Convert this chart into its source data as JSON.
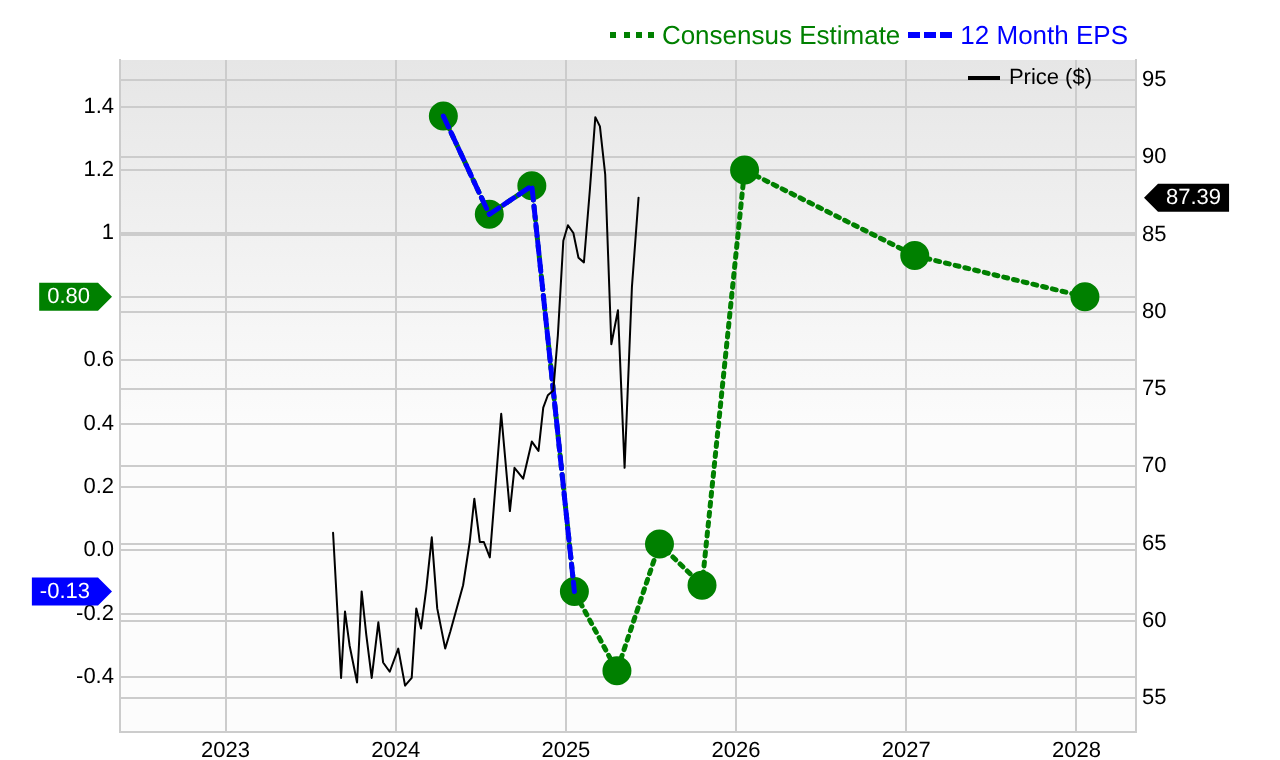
{
  "chart_data": {
    "type": "line",
    "xlim": [
      2022.38,
      2028.35
    ],
    "xticks": [
      2023,
      2024,
      2025,
      2026,
      2027,
      2028
    ],
    "ylim": [
      -0.573,
      1.547
    ],
    "yticks": [
      {
        "value": -0.4,
        "label": "-0.4"
      },
      {
        "value": -0.2,
        "label": "-0.2"
      },
      {
        "value": 0,
        "label": "0.0"
      },
      {
        "value": 0.2,
        "label": "0.2"
      },
      {
        "value": 0.4,
        "label": "0.4"
      },
      {
        "value": 0.6,
        "label": "0.6"
      },
      {
        "value": 0.8,
        "label": null
      },
      {
        "value": 1,
        "label": "1"
      },
      {
        "value": 1.2,
        "label": "1.2"
      },
      {
        "value": 1.4,
        "label": "1.4"
      }
    ],
    "y2lim": [
      52.8,
      96.3
    ],
    "y2ticks": [
      55,
      60,
      65,
      70,
      75,
      80,
      85,
      90,
      95
    ],
    "grid": true,
    "legend": "top right",
    "annotations": [
      "0.80",
      "-0.13",
      "87.39"
    ],
    "series": [
      {
        "name": "Consensus Estimate",
        "color": "#008000",
        "line_style": "dotted",
        "marker": "circle",
        "x": [
          2024.28,
          2024.55,
          2024.8,
          2025.05,
          2025.3,
          2025.55,
          2025.8,
          2026.05,
          2027.05,
          2028.05
        ],
        "values": [
          1.37,
          1.06,
          1.15,
          -0.13,
          -0.38,
          0.02,
          -0.11,
          1.2,
          0.93,
          0.8
        ]
      },
      {
        "name": "12 Month EPS",
        "color": "#0000ff",
        "line_style": "dashed",
        "marker": "none",
        "x": [
          2024.28,
          2024.55,
          2024.8,
          2025.05
        ],
        "values": [
          1.37,
          1.06,
          1.15,
          -0.13
        ]
      },
      {
        "name": "Price ($)",
        "color": "#000000",
        "line_style": "solid",
        "marker": "none",
        "axis": "y2",
        "x": [
          2023.632,
          2023.679,
          2023.702,
          2023.729,
          2023.773,
          2023.8,
          2023.827,
          2023.859,
          2023.898,
          2023.926,
          2023.965,
          2024.015,
          2024.055,
          2024.094,
          2024.121,
          2024.149,
          2024.18,
          2024.212,
          2024.244,
          2024.291,
          2024.321,
          2024.396,
          2024.435,
          2024.462,
          2024.494,
          2024.518,
          2024.553,
          2024.62,
          2024.671,
          2024.698,
          2024.749,
          2024.8,
          2024.839,
          2024.867,
          2024.894,
          2024.926,
          2024.953,
          2024.985,
          2025.012,
          2025.044,
          2025.074,
          2025.106,
          2025.141,
          2025.173,
          2025.2,
          2025.231,
          2025.267,
          2025.306,
          2025.345,
          2025.388,
          2025.427
        ],
        "values": [
          65.7,
          56.3,
          60.6,
          58.4,
          56.0,
          61.9,
          59.1,
          56.3,
          59.9,
          57.3,
          56.7,
          58.2,
          55.8,
          56.3,
          60.8,
          59.5,
          62.1,
          65.4,
          60.8,
          58.2,
          59.3,
          62.3,
          65.1,
          67.9,
          65.1,
          65.1,
          64.1,
          73.4,
          67.1,
          69.9,
          69.2,
          71.6,
          71.0,
          73.8,
          74.6,
          74.9,
          78.5,
          84.6,
          85.6,
          85.1,
          83.5,
          83.2,
          87.9,
          92.6,
          92.0,
          88.9,
          77.9,
          80.1,
          69.9,
          81.6,
          87.39
        ]
      }
    ]
  }
}
